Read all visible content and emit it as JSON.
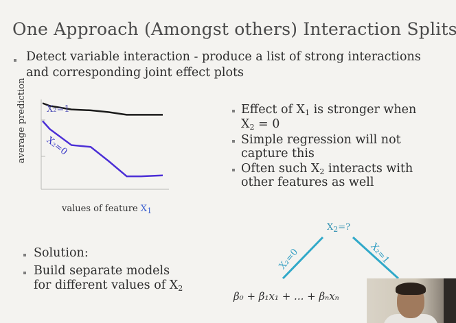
{
  "slide": {
    "title": "One Approach (Amongst others) Interaction Splits",
    "bullet1_line1": "Detect variable interaction - produce a list of strong interactions",
    "bullet1_line2": "and corresponding joint effect plots",
    "right_bullets": {
      "b1_a": "Effect of X",
      "b1_a_sub": "1",
      "b1_a_tail": " is stronger when",
      "b1_b": "X",
      "b1_b_sub": "2",
      "b1_b_tail": " = 0",
      "b2_a": "Simple regression will not",
      "b2_b": "capture this",
      "b3_a": "Often such X",
      "b3_a_sub": "2",
      "b3_a_tail": " interacts with",
      "b3_b": "other features as well"
    },
    "solution": {
      "b1": "Solution:",
      "b2_a": "Build separate models",
      "b2_b": "for different values of X",
      "b2_b_sub": "2"
    },
    "tree": {
      "root": "X",
      "root_sub": "2",
      "root_tail": "=?",
      "left_edge": "X₂=0",
      "right_edge": "X₂=1",
      "formula": "β₀ + β₁x₁ + ... + βₙxₙ",
      "colors": {
        "edge": "#31a9c9"
      }
    }
  },
  "chart_data": {
    "type": "line",
    "xlabel": "values of feature X₁",
    "ylabel": "average prediction",
    "series": [
      {
        "name": "X₂=1",
        "color": "#1a1a1a",
        "values": [
          0.95,
          0.92,
          0.88,
          0.87,
          0.85,
          0.82,
          0.82,
          0.82
        ]
      },
      {
        "name": "X₂=0",
        "color": "#4b2ed6",
        "values": [
          0.75,
          0.66,
          0.48,
          0.46,
          0.3,
          0.13,
          0.13,
          0.14
        ]
      }
    ],
    "x": [
      0,
      0.06,
      0.24,
      0.4,
      0.55,
      0.7,
      0.82,
      1.0
    ],
    "grid": false
  }
}
